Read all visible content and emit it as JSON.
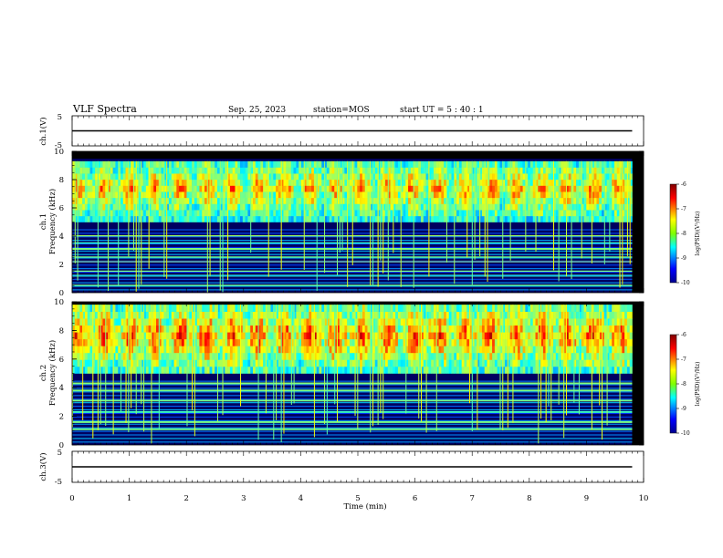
{
  "header": {
    "title": "VLF Spectra",
    "date": "Sep. 25, 2023",
    "station": "station=MOS",
    "start": "start  UT =   5 : 40 : 1"
  },
  "chart_data": [
    {
      "type": "line",
      "panel": "ch1-waveform",
      "ylabel": "ch.1(V)",
      "ylim": [
        -5,
        5
      ],
      "ytick_labels": [
        "5",
        "-5"
      ],
      "x": [
        0,
        9.8
      ],
      "values": [
        0,
        0
      ]
    },
    {
      "type": "heatmap",
      "panel": "ch1-spectrogram",
      "ylabel": "ch.1\nFrequency (kHz)",
      "ylim": [
        0,
        10
      ],
      "ytick_labels": [
        "0",
        "2",
        "4",
        "6",
        "8",
        "10"
      ],
      "colorbar": {
        "label": "log(PSD)(V²/Hz)",
        "range": [
          -10,
          -6
        ],
        "tick_labels": [
          "-6",
          "-7",
          "-8",
          "-9",
          "-10"
        ]
      },
      "band_khz": [
        5.0,
        9.3
      ],
      "bright_lines_khz": [
        0.5,
        1.2,
        1.5,
        2.2,
        2.5,
        3.1,
        3.5,
        4.0
      ]
    },
    {
      "type": "heatmap",
      "panel": "ch2-spectrogram",
      "ylabel": "ch.2\nFrequency (kHz)",
      "ylim": [
        0,
        10
      ],
      "ytick_labels": [
        "0",
        "2",
        "4",
        "6",
        "8",
        "10"
      ],
      "colorbar": {
        "label": "log(PSD)(V²/Hz)",
        "range": [
          -10,
          -6
        ],
        "tick_labels": [
          "-6",
          "-7",
          "-8",
          "-9",
          "-10"
        ]
      },
      "band_khz": [
        5.0,
        9.8
      ],
      "bright_lines_khz": [
        1.1,
        1.6,
        2.3,
        3.1,
        3.8,
        4.3
      ]
    },
    {
      "type": "line",
      "panel": "ch3-waveform",
      "ylabel": "ch.3(V)",
      "ylim": [
        -5,
        5
      ],
      "ytick_labels": [
        "5",
        "-5"
      ],
      "x": [
        0,
        9.8
      ],
      "values": [
        0,
        0
      ]
    }
  ],
  "x_axis": {
    "label": "Time (min)",
    "range": [
      0,
      10
    ],
    "data_extent": 9.8,
    "tick_labels": [
      "0",
      "1",
      "2",
      "3",
      "4",
      "5",
      "6",
      "7",
      "8",
      "9",
      "10"
    ]
  },
  "colors": {
    "jet": [
      "#00008f",
      "#0000ff",
      "#00ffff",
      "#80ff00",
      "#ffff00",
      "#ff0000",
      "#800000"
    ]
  }
}
